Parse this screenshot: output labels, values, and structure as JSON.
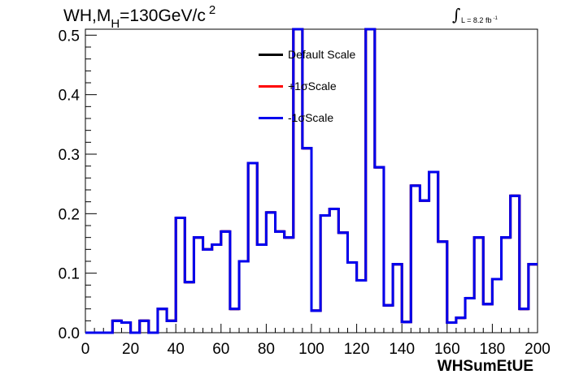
{
  "title": {
    "main": "WH,M",
    "sub": "H",
    "rest": "=130GeV/c",
    "sup": "2"
  },
  "luminosity": {
    "symbol": "∫",
    "text": "L = 8.2 fb",
    "sup": "-1"
  },
  "chart_data": {
    "type": "line",
    "xlabel": "WHSumEtUE",
    "ylabel": "",
    "xlim": [
      0,
      200
    ],
    "ylim": [
      0,
      0.51
    ],
    "xticks": [
      "0",
      "20",
      "40",
      "60",
      "80",
      "100",
      "120",
      "140",
      "160",
      "180",
      "200"
    ],
    "yticks": [
      "0.0",
      "0.1",
      "0.2",
      "0.3",
      "0.4",
      "0.5"
    ],
    "bin_width": 4,
    "bin_edges": [
      0,
      4,
      8,
      12,
      16,
      20,
      24,
      28,
      32,
      36,
      40,
      44,
      48,
      52,
      56,
      60,
      64,
      68,
      72,
      76,
      80,
      84,
      88,
      92,
      96,
      100,
      104,
      108,
      112,
      116,
      120,
      124,
      128,
      132,
      136,
      140,
      144,
      148,
      152,
      156,
      160,
      164,
      168,
      172,
      176,
      180,
      184,
      188,
      192,
      196,
      200
    ],
    "series": [
      {
        "name": "Default Scale",
        "color": "#000000",
        "values": [
          0,
          0,
          0,
          0.02,
          0.017,
          0,
          0.02,
          0,
          0.04,
          0.02,
          0.193,
          0.085,
          0.16,
          0.14,
          0.148,
          0.17,
          0.04,
          0.12,
          0.285,
          0.148,
          0.202,
          0.17,
          0.16,
          0.51,
          0.31,
          0.037,
          0.197,
          0.208,
          0.168,
          0.118,
          0.088,
          0.51,
          0.278,
          0.046,
          0.115,
          0.018,
          0.247,
          0.222,
          0.27,
          0.153,
          0.017,
          0.025,
          0.058,
          0.16,
          0.048,
          0.09,
          0.16,
          0.23,
          0.04,
          0.115
        ]
      },
      {
        "name": "+1σScale",
        "color": "#ff0000",
        "values": [
          0,
          0,
          0,
          0.02,
          0.017,
          0,
          0.02,
          0,
          0.04,
          0.02,
          0.193,
          0.085,
          0.16,
          0.14,
          0.148,
          0.17,
          0.04,
          0.12,
          0.285,
          0.148,
          0.202,
          0.17,
          0.16,
          0.51,
          0.31,
          0.037,
          0.197,
          0.208,
          0.168,
          0.118,
          0.088,
          0.51,
          0.278,
          0.046,
          0.115,
          0.018,
          0.247,
          0.222,
          0.27,
          0.153,
          0.017,
          0.025,
          0.058,
          0.16,
          0.048,
          0.09,
          0.16,
          0.23,
          0.04,
          0.115
        ]
      },
      {
        "name": "-1σScale",
        "color": "#0000ee",
        "values": [
          0,
          0,
          0,
          0.02,
          0.017,
          0,
          0.02,
          0,
          0.04,
          0.02,
          0.193,
          0.085,
          0.16,
          0.14,
          0.148,
          0.17,
          0.04,
          0.12,
          0.285,
          0.148,
          0.202,
          0.17,
          0.16,
          0.51,
          0.31,
          0.037,
          0.197,
          0.208,
          0.168,
          0.118,
          0.088,
          0.51,
          0.278,
          0.046,
          0.115,
          0.018,
          0.247,
          0.222,
          0.27,
          0.153,
          0.017,
          0.025,
          0.058,
          0.16,
          0.048,
          0.09,
          0.16,
          0.23,
          0.04,
          0.115
        ]
      }
    ],
    "legend_position": "top-center",
    "grid": false
  }
}
